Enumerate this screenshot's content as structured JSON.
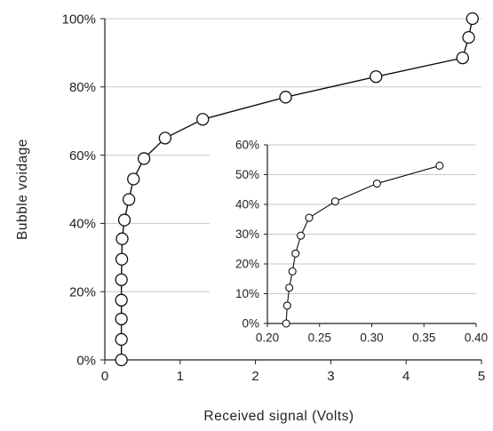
{
  "chart_data": [
    {
      "type": "line",
      "markers": "open-circle",
      "xlabel": "Received signal (Volts)",
      "ylabel": "Bubble voidage",
      "xlim": [
        0,
        5
      ],
      "ylim": [
        0,
        100
      ],
      "x_ticks": [
        "0",
        "1",
        "2",
        "3",
        "4",
        "5"
      ],
      "y_ticks": [
        "0%",
        "20%",
        "40%",
        "60%",
        "80%",
        "100%"
      ],
      "grid": "horizontal",
      "series": [
        {
          "x": [
            0.22,
            0.22,
            0.22,
            0.22,
            0.22,
            0.225,
            0.23,
            0.26,
            0.32,
            0.38,
            0.52,
            0.8,
            1.3,
            2.4,
            3.6,
            4.75,
            4.83,
            4.88
          ],
          "y": [
            0,
            6,
            12,
            17.5,
            23.5,
            29.5,
            35.5,
            41,
            47,
            53,
            59,
            65,
            70.5,
            77,
            83,
            88.5,
            94.5,
            100
          ]
        }
      ]
    },
    {
      "type": "line",
      "markers": "open-circle",
      "inset": true,
      "xlabel": "",
      "ylabel": "",
      "xlim": [
        0.2,
        0.4
      ],
      "ylim": [
        0,
        60
      ],
      "x_ticks": [
        "0.20",
        "0.25",
        "0.30",
        "0.35",
        "0.40"
      ],
      "y_ticks": [
        "0%",
        "10%",
        "20%",
        "30%",
        "40%",
        "50%",
        "60%"
      ],
      "grid": "horizontal",
      "series": [
        {
          "x": [
            0.218,
            0.219,
            0.221,
            0.224,
            0.227,
            0.232,
            0.24,
            0.265,
            0.305,
            0.365
          ],
          "y": [
            0,
            6,
            12,
            17.5,
            23.5,
            29.5,
            35.5,
            41,
            47,
            53
          ]
        }
      ]
    }
  ]
}
